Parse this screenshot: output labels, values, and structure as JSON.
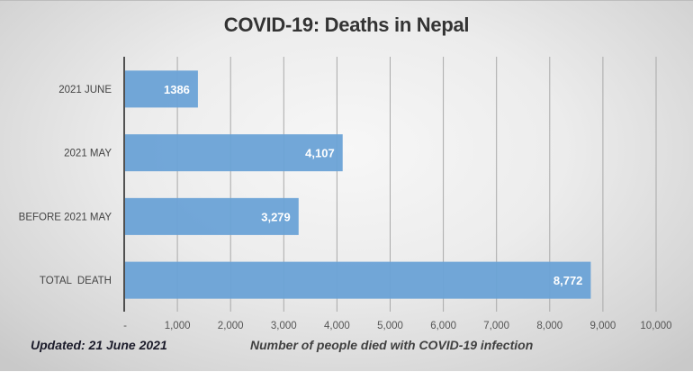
{
  "chart_data": {
    "type": "bar",
    "orientation": "horizontal",
    "title": "COVID-19: Deaths in Nepal",
    "xlabel": "Number of people died with COVID-19 infection",
    "ylabel": "",
    "categories": [
      "2021 JUNE",
      "2021 MAY",
      "BEFORE 2021 MAY",
      "TOTAL  DEATH"
    ],
    "values": [
      1386,
      4107,
      3279,
      8772
    ],
    "value_labels": [
      "1386",
      "4,107",
      "3,279",
      "8,772"
    ],
    "xlim": [
      0,
      10000
    ],
    "xticks": [
      0,
      1000,
      2000,
      3000,
      4000,
      5000,
      6000,
      7000,
      8000,
      9000,
      10000
    ],
    "xtick_labels": [
      "-",
      "1,000",
      "2,000",
      "3,000",
      "4,000",
      "5,000",
      "6,000",
      "7,000",
      "8,000",
      "9,000",
      "10,000"
    ],
    "grid": "vertical",
    "legend": "none",
    "bar_color": "#6aa2d6",
    "annotation": "Updated: 21 June 2021"
  }
}
